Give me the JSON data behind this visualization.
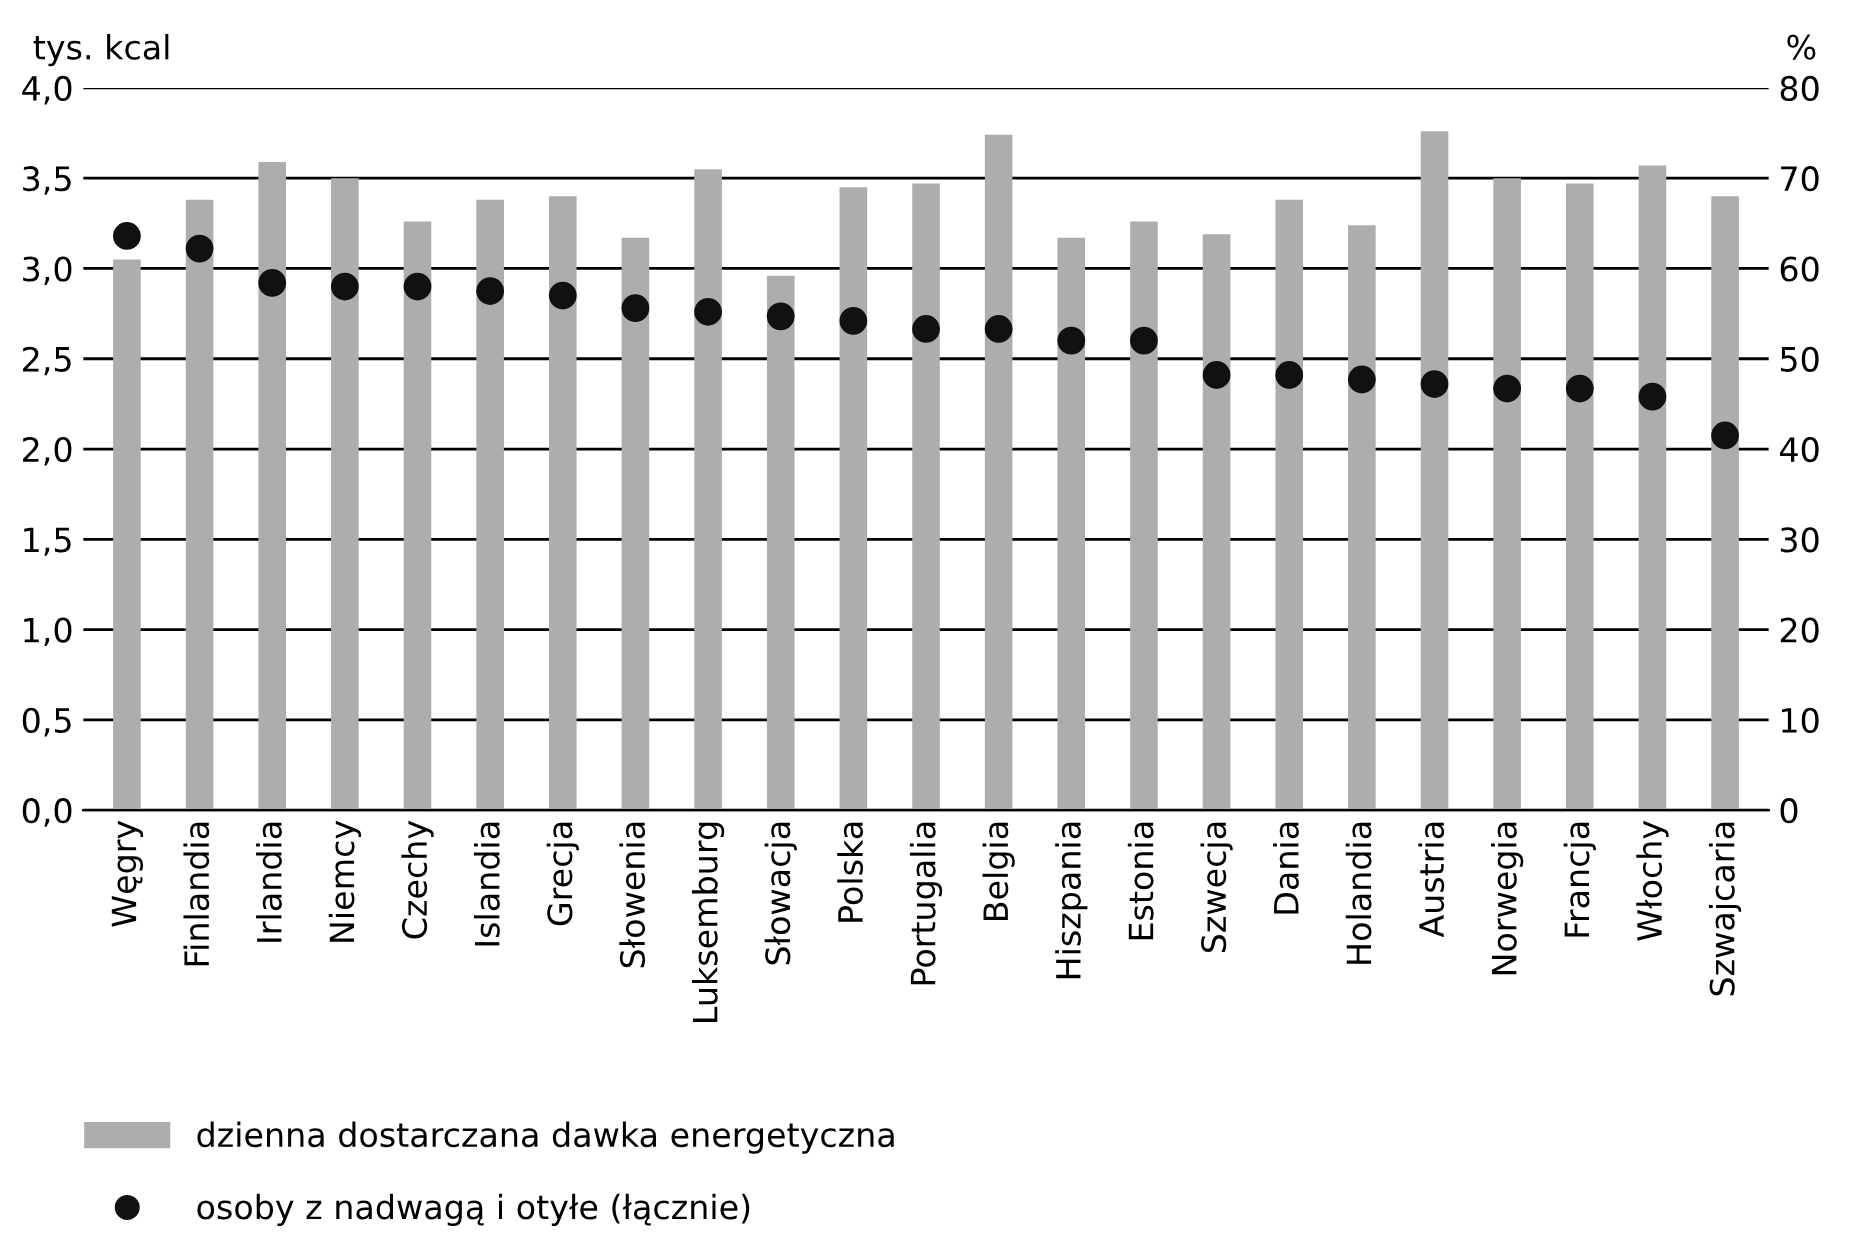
{
  "chart_data": {
    "type": "bar",
    "ylabel": "tys. kcal",
    "y2label": "%",
    "categories": [
      "Węgry",
      "Finlandia",
      "Irlandia",
      "Niemcy",
      "Czechy",
      "Islandia",
      "Grecja",
      "Słowenia",
      "Luksemburg",
      "Słowacja",
      "Polska",
      "Portugalia",
      "Belgia",
      "Hiszpania",
      "Estonia",
      "Szwecja",
      "Dania",
      "Holandia",
      "Austria",
      "Norwegia",
      "Francja",
      "Włochy",
      "Szwajcaria"
    ],
    "series": [
      {
        "name": "dzienna dostarczana dawka energetyczna",
        "color": "#adadae",
        "values": [
          3.05,
          3.38,
          3.59,
          3.5,
          3.26,
          3.38,
          3.4,
          3.17,
          3.55,
          2.96,
          3.45,
          3.47,
          3.74,
          3.17,
          3.26,
          3.19,
          3.38,
          3.24,
          3.76,
          3.5,
          3.47,
          3.57,
          3.4
        ]
      },
      {
        "name": "osoby z nadwagą i otyłe (łącznie)",
        "type": "scatter",
        "axis": "y2",
        "color": "#111111",
        "marker": "circle",
        "values": [
          63.6,
          62.2,
          58.4,
          58,
          58,
          57.5,
          57,
          55.6,
          55.2,
          54.7,
          54.2,
          53.3,
          53.3,
          52,
          52,
          48.2,
          48.2,
          47.7,
          47.2,
          46.7,
          46.7,
          45.8,
          41.5
        ]
      }
    ],
    "ylim": [
      0,
      4
    ],
    "yticks": [
      {
        "value": 0,
        "label": "0,0"
      },
      {
        "value": 0.5,
        "label": "0,5"
      },
      {
        "value": 1,
        "label": "1,0"
      },
      {
        "value": 1.5,
        "label": "1,5"
      },
      {
        "value": 2,
        "label": "2,0"
      },
      {
        "value": 2.5,
        "label": "2,5"
      },
      {
        "value": 3,
        "label": "3,0"
      },
      {
        "value": 3.5,
        "label": "3,5"
      },
      {
        "value": 4,
        "label": "4,0"
      }
    ],
    "y2lim": [
      0,
      80
    ],
    "y2ticks": [
      0,
      10,
      20,
      30,
      40,
      50,
      60,
      70,
      80
    ],
    "grid": "y",
    "legend": "bottom"
  }
}
